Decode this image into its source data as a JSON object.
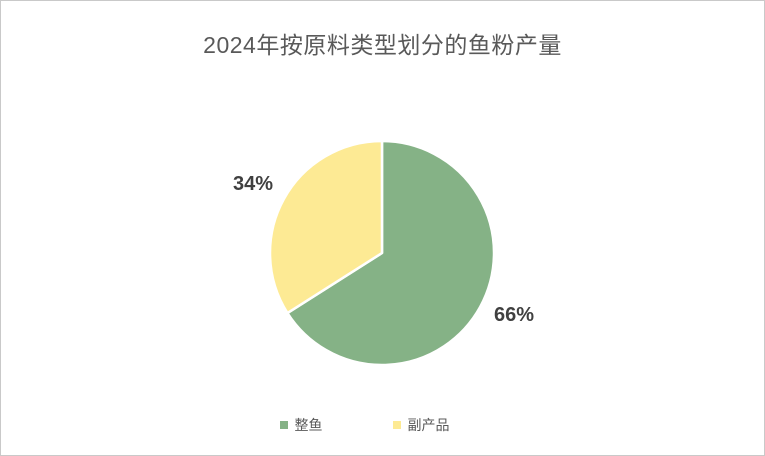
{
  "frame": {
    "background": "#ffffff",
    "border_color": "#c9c9c9"
  },
  "chart_data": {
    "type": "pie",
    "title": "2024年按原料类型划分的鱼粉产量",
    "categories": [
      "整鱼",
      "副产品"
    ],
    "values": [
      66,
      34
    ],
    "data_labels": [
      "66%",
      "34%"
    ],
    "colors": [
      "#85B286",
      "#FDEA94"
    ],
    "slice_border_color": "#ffffff",
    "title_color": "#595959",
    "data_label_color": "#404040",
    "legend_text_color": "#595959",
    "legend_position": "bottom",
    "start_angle": "top",
    "direction": "clockwise"
  }
}
